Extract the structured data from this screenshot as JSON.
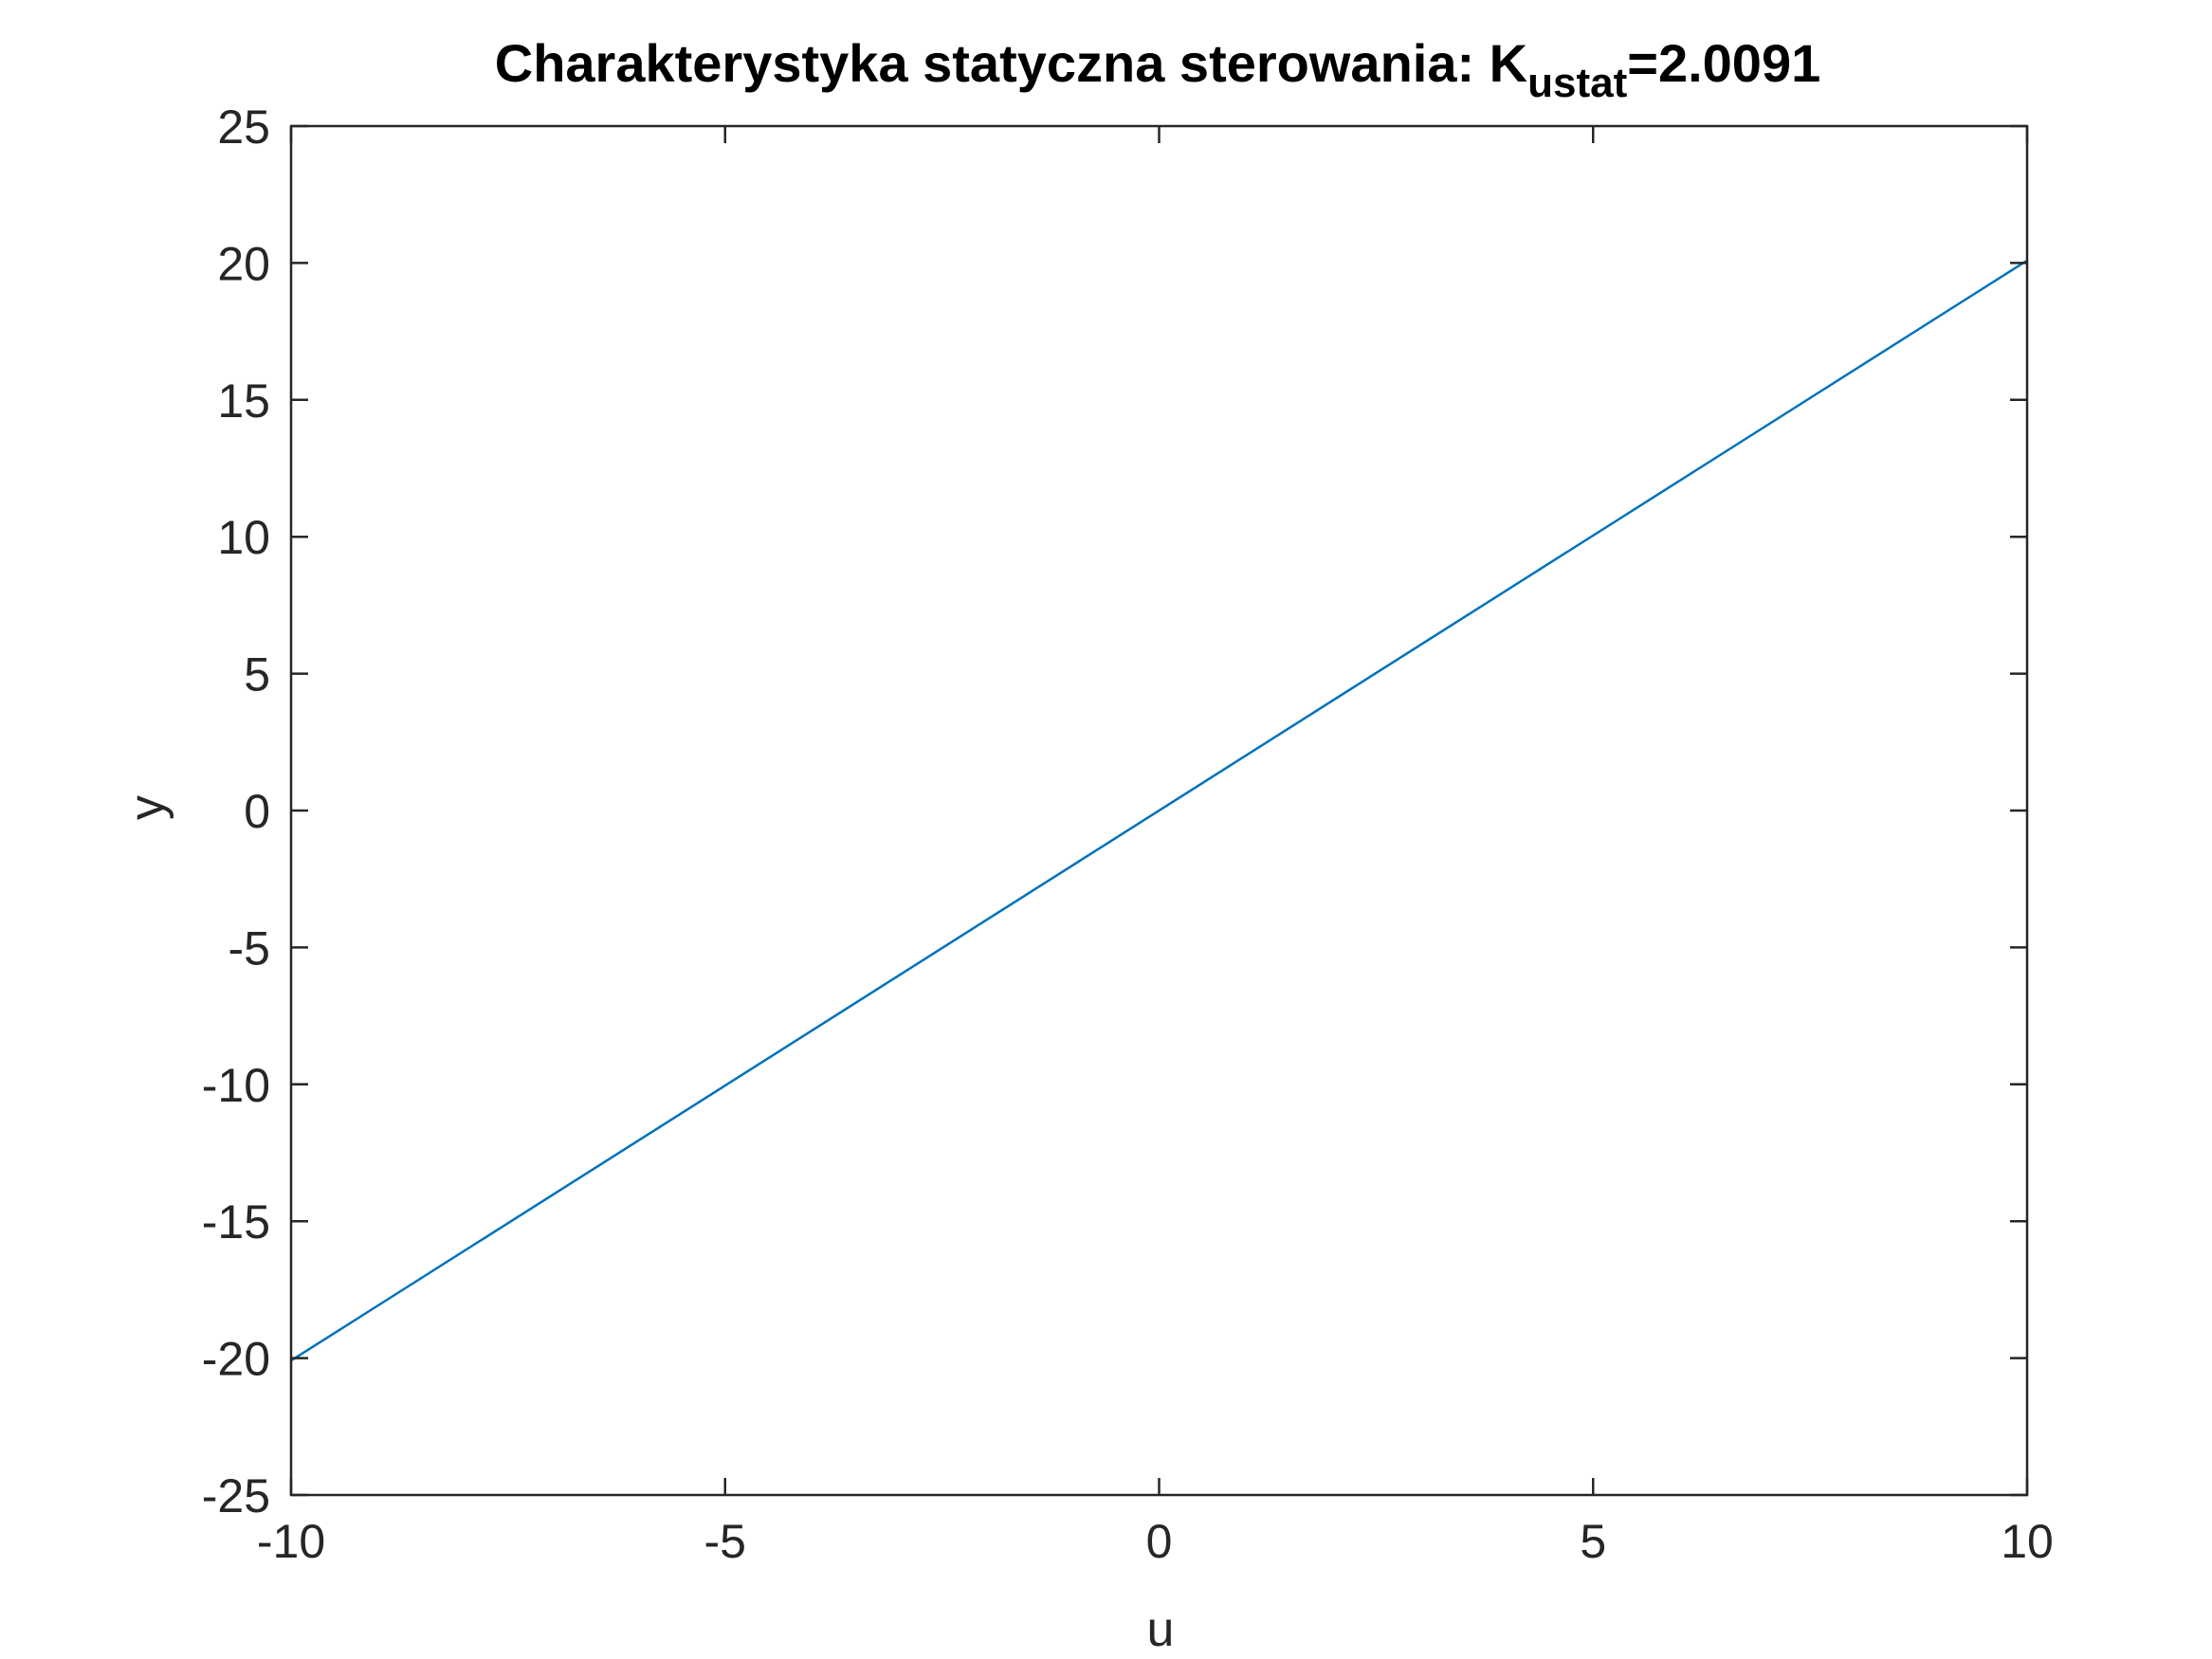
{
  "chart_data": {
    "type": "line",
    "title": {
      "prefix": "Charakterystyka statyczna sterowania:  K",
      "subscript": "ustat",
      "suffix": "=2.0091"
    },
    "xlabel": "u",
    "ylabel": "y",
    "xlim": [
      -10,
      10
    ],
    "ylim": [
      -25,
      25
    ],
    "xticks": [
      -10,
      -5,
      0,
      5,
      10
    ],
    "yticks": [
      -25,
      -20,
      -15,
      -10,
      -5,
      0,
      5,
      10,
      15,
      20,
      25
    ],
    "xtick_labels": [
      "-10",
      "-5",
      "0",
      "5",
      "10"
    ],
    "ytick_labels": [
      "-25",
      "-20",
      "-15",
      "-10",
      "-5",
      "0",
      "5",
      "10",
      "15",
      "20",
      "25"
    ],
    "grid": false,
    "series": [
      {
        "color": "#0072BD",
        "x": [
          -10,
          10
        ],
        "y": [
          -20.091,
          20.091
        ]
      }
    ]
  },
  "colors": {
    "axes": "#262626",
    "line": "#0072BD",
    "background": "#ffffff"
  }
}
